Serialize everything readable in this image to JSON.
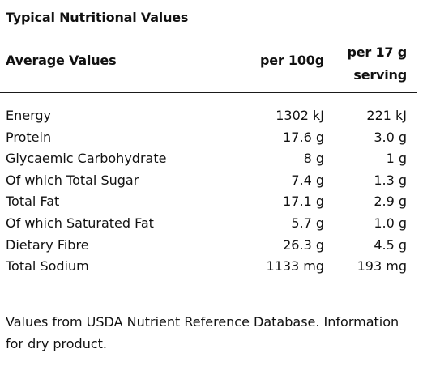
{
  "title": "Typical Nutritional Values",
  "header": {
    "label": "Average Values",
    "per100": "per 100g",
    "perServing": "per 17 g serving"
  },
  "rows": [
    {
      "label": "Energy",
      "per100": "1302 kJ",
      "perServing": "221 kJ"
    },
    {
      "label": "Protein",
      "per100": "17.6 g",
      "perServing": "3.0 g"
    },
    {
      "label": "Glycaemic Carbohydrate",
      "per100": "8 g",
      "perServing": "1 g"
    },
    {
      "label": "Of which Total Sugar",
      "per100": "7.4 g",
      "perServing": "1.3 g"
    },
    {
      "label": "Total Fat",
      "per100": "17.1 g",
      "perServing": "2.9 g"
    },
    {
      "label": "Of which Saturated Fat",
      "per100": "5.7 g",
      "perServing": "1.0 g"
    },
    {
      "label": "Dietary Fibre",
      "per100": "26.3 g",
      "perServing": "4.5 g"
    },
    {
      "label": "Total Sodium",
      "per100": "1133 mg",
      "perServing": "193 mg"
    }
  ],
  "footnote": "Values from USDA Nutrient Reference Database. Information for dry product."
}
